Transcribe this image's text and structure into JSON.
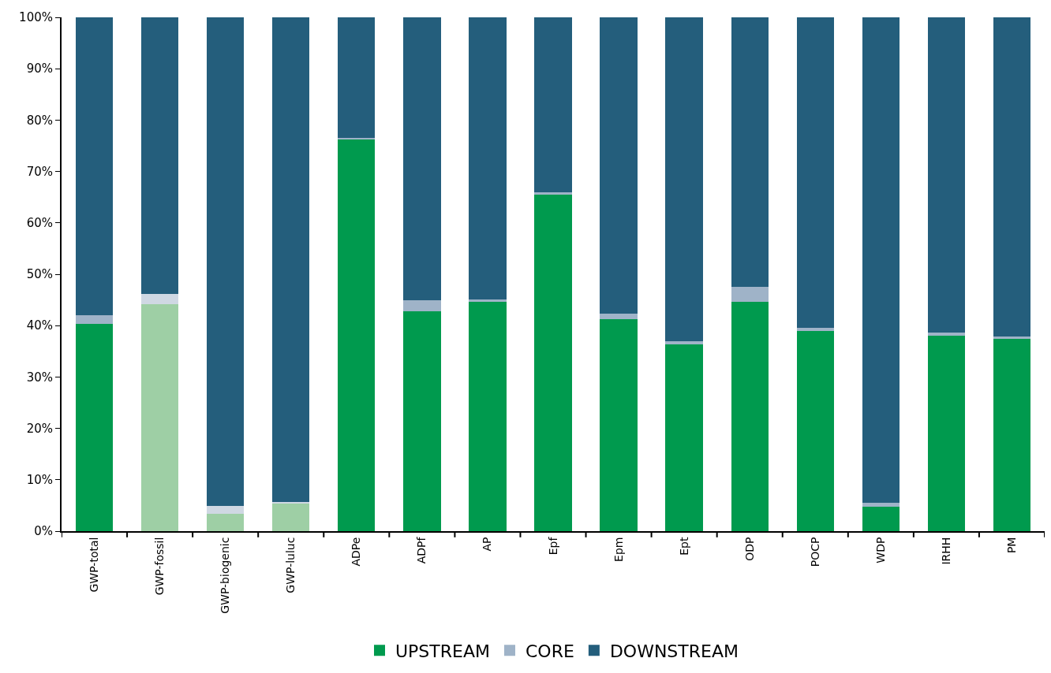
{
  "chart_data": {
    "type": "bar",
    "stacked": true,
    "categories": [
      "GWP-total",
      "GWP-fossil",
      "GWP-biogenic",
      "GWP-luluc",
      "ADPe",
      "ADPf",
      "AP",
      "Epf",
      "Epm",
      "Ept",
      "ODP",
      "POCP",
      "WDP",
      "IRHH",
      "PM"
    ],
    "series": [
      {
        "name": "UPSTREAM",
        "color": "#009a4e",
        "colors": [
          "#009a4e",
          "#9ecfa5",
          "#9ecfa5",
          "#9ecfa5",
          "#009a4e",
          "#009a4e",
          "#009a4e",
          "#009a4e",
          "#009a4e",
          "#009a4e",
          "#009a4e",
          "#009a4e",
          "#009a4e",
          "#009a4e",
          "#009a4e"
        ],
        "values": [
          40.3,
          44.2,
          3.4,
          5.4,
          76.3,
          42.8,
          44.6,
          65.6,
          41.3,
          36.3,
          44.6,
          38.9,
          4.7,
          38.0,
          37.5
        ]
      },
      {
        "name": "CORE",
        "color": "#9fb3c8",
        "colors": [
          "#9fb3c8",
          "#cfd8e3",
          "#cfd8e3",
          "#cfd8e3",
          "#9fb3c8",
          "#9fb3c8",
          "#9fb3c8",
          "#9fb3c8",
          "#9fb3c8",
          "#9fb3c8",
          "#9fb3c8",
          "#9fb3c8",
          "#9fb3c8",
          "#9fb3c8",
          "#9fb3c8"
        ],
        "values": [
          1.7,
          1.9,
          1.5,
          0.3,
          0.2,
          2.2,
          0.5,
          0.3,
          1.0,
          0.6,
          2.9,
          0.7,
          0.8,
          0.7,
          0.4
        ]
      },
      {
        "name": "DOWNSTREAM",
        "color": "#245e7c",
        "values": [
          58.0,
          53.9,
          95.1,
          94.3,
          23.5,
          55.0,
          54.9,
          34.1,
          57.7,
          63.1,
          52.5,
          60.4,
          94.5,
          61.3,
          62.1
        ]
      }
    ],
    "ylim": [
      0,
      100
    ],
    "yticks": [
      {
        "value": 0,
        "label": "0%"
      },
      {
        "value": 10,
        "label": "10%"
      },
      {
        "value": 20,
        "label": "20%"
      },
      {
        "value": 30,
        "label": "30%"
      },
      {
        "value": 40,
        "label": "40%"
      },
      {
        "value": 50,
        "label": "50%"
      },
      {
        "value": 60,
        "label": "60%"
      },
      {
        "value": 70,
        "label": "70%"
      },
      {
        "value": 80,
        "label": "80%"
      },
      {
        "value": 90,
        "label": "90%"
      },
      {
        "value": 100,
        "label": "100%"
      }
    ],
    "grid": false,
    "legend": "bottom"
  }
}
